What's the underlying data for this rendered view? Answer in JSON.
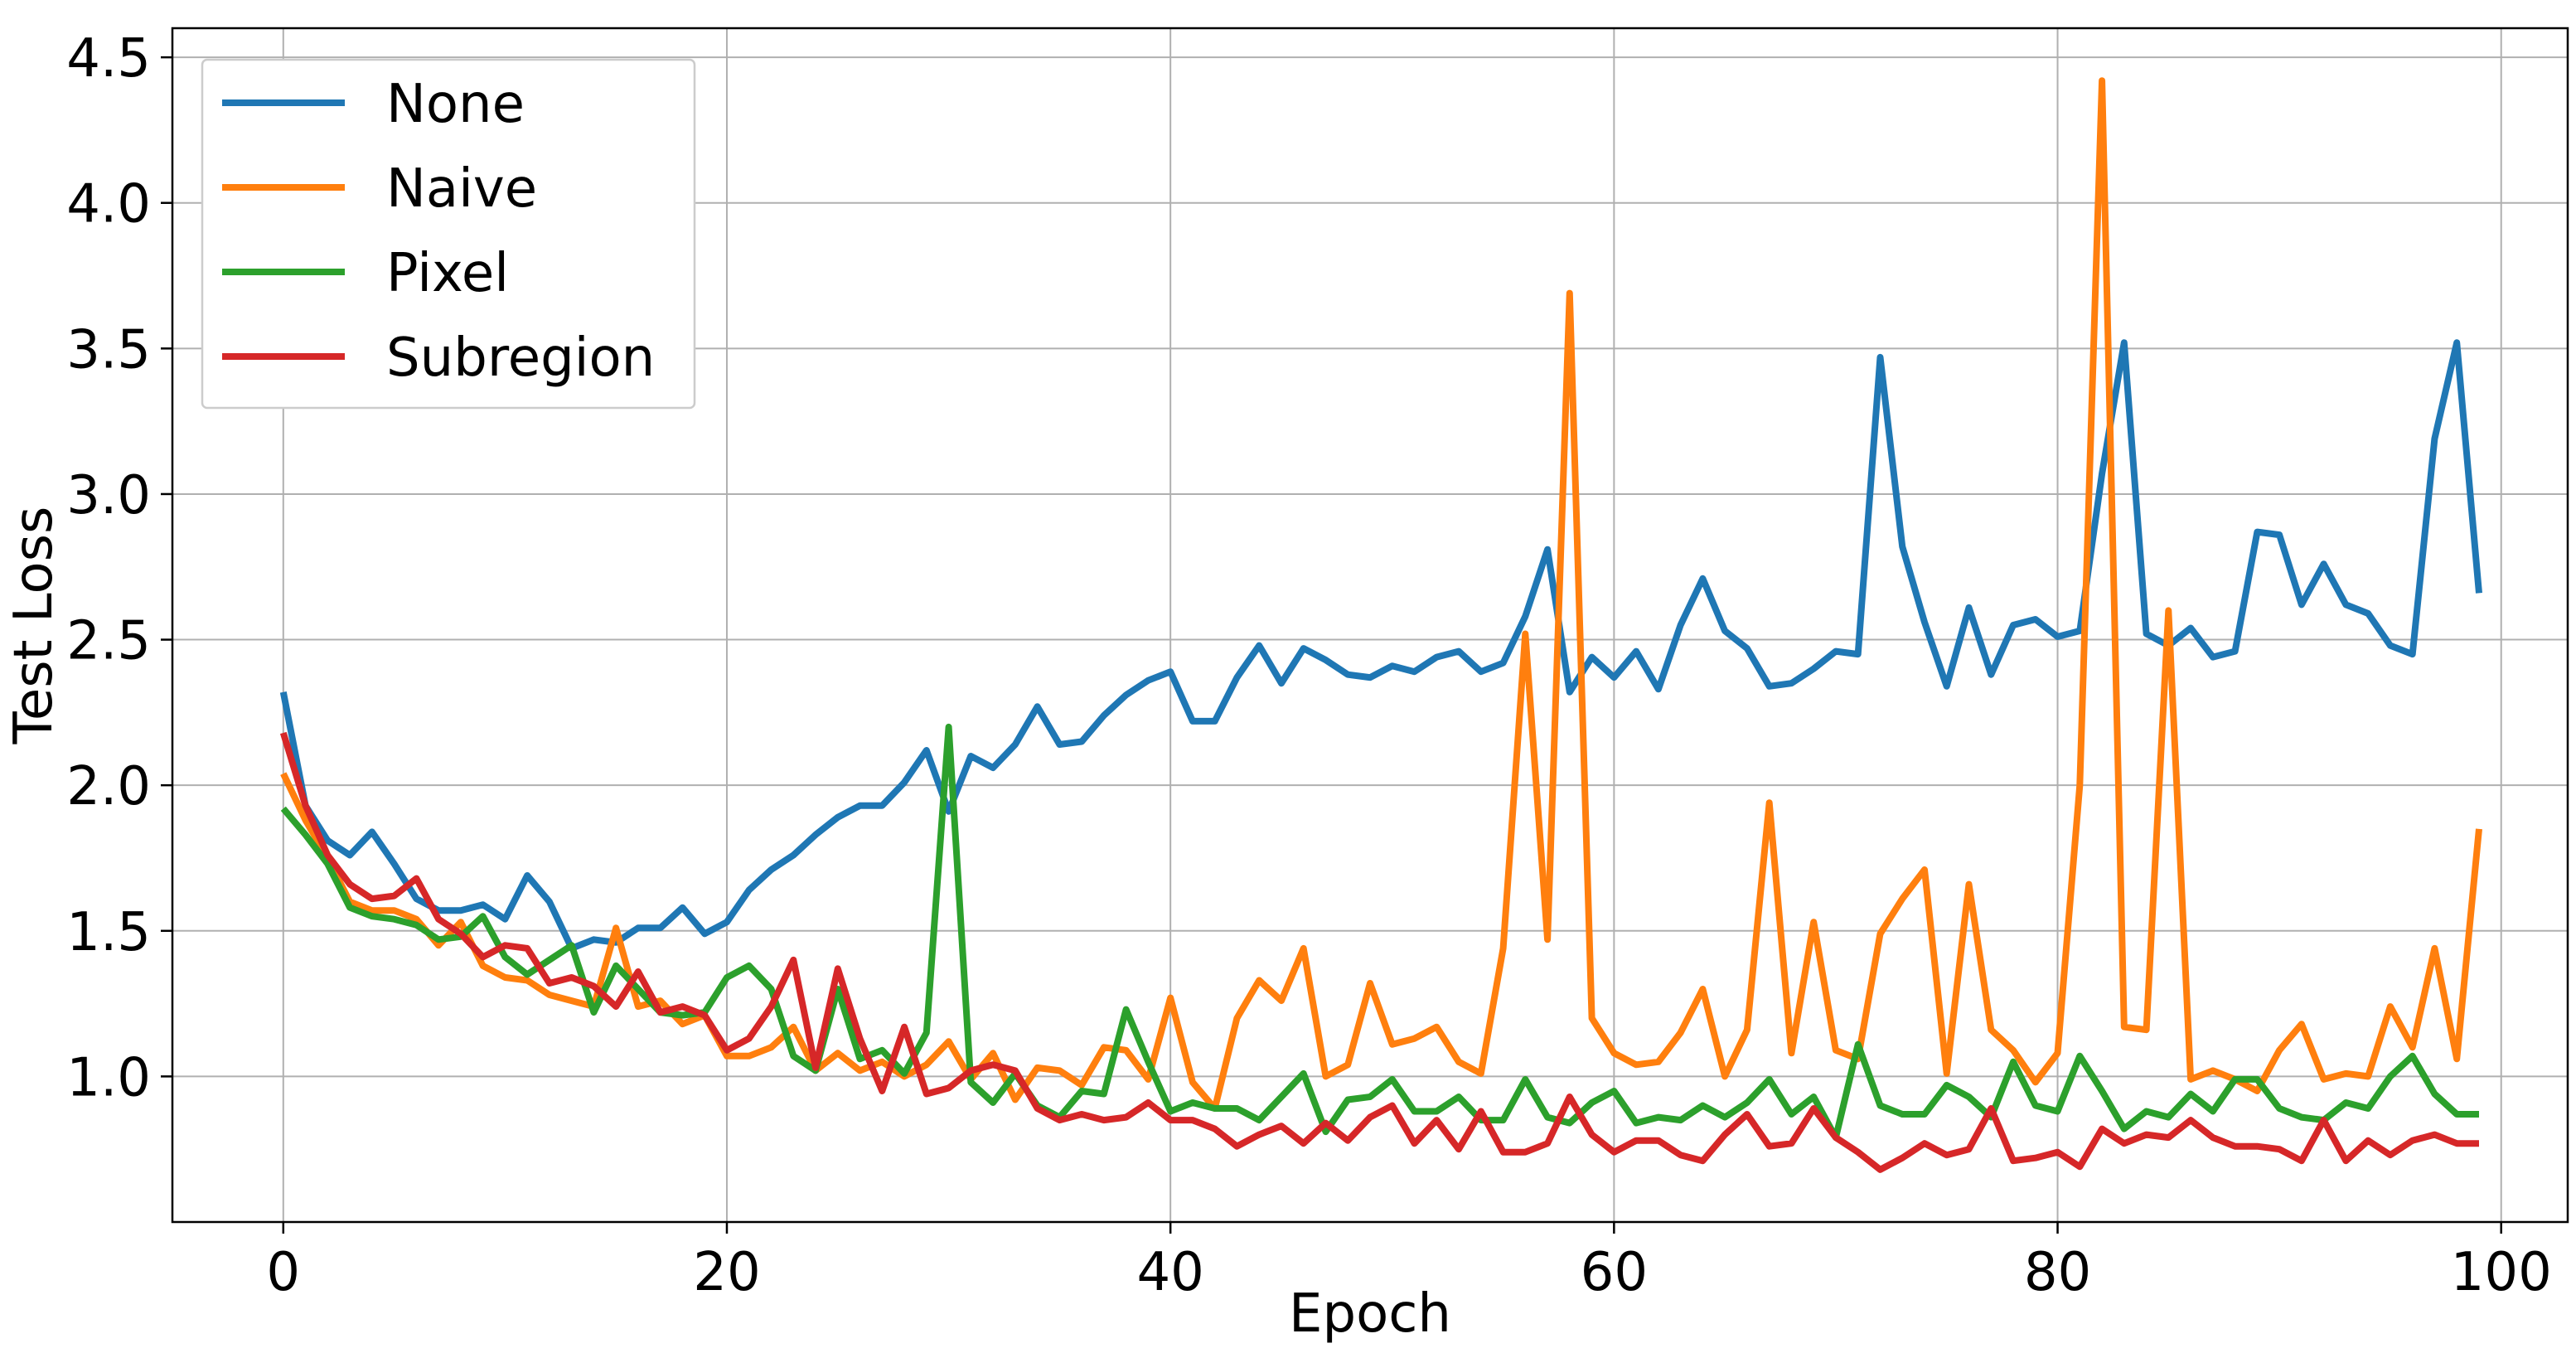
{
  "chart_data": {
    "type": "line",
    "title": "",
    "xlabel": "Epoch",
    "ylabel": "Test Loss",
    "xlim": [
      -5,
      103
    ],
    "ylim": [
      0.5,
      4.6
    ],
    "xticks": [
      0,
      20,
      40,
      60,
      80,
      100
    ],
    "yticks": [
      1.0,
      1.5,
      2.0,
      2.5,
      3.0,
      3.5,
      4.0,
      4.5
    ],
    "xtick_labels": [
      "0",
      "20",
      "40",
      "60",
      "80",
      "100"
    ],
    "ytick_labels": [
      "1.0",
      "1.5",
      "2.0",
      "2.5",
      "3.0",
      "3.5",
      "4.0",
      "4.5"
    ],
    "grid": true,
    "legend_position": "top-left",
    "series": [
      {
        "name": "None",
        "color": "#1f77b4",
        "values": [
          2.32,
          1.93,
          1.81,
          1.76,
          1.84,
          1.73,
          1.61,
          1.57,
          1.57,
          1.59,
          1.54,
          1.69,
          1.6,
          1.44,
          1.47,
          1.46,
          1.51,
          1.51,
          1.58,
          1.49,
          1.53,
          1.64,
          1.71,
          1.76,
          1.83,
          1.89,
          1.93,
          1.93,
          2.01,
          2.12,
          1.91,
          2.1,
          2.06,
          2.14,
          2.27,
          2.14,
          2.15,
          2.24,
          2.31,
          2.36,
          2.39,
          2.22,
          2.22,
          2.37,
          2.48,
          2.35,
          2.47,
          2.43,
          2.38,
          2.37,
          2.41,
          2.39,
          2.44,
          2.46,
          2.39,
          2.42,
          2.58,
          2.81,
          2.32,
          2.44,
          2.37,
          2.46,
          2.33,
          2.55,
          2.71,
          2.53,
          2.47,
          2.34,
          2.35,
          2.4,
          2.46,
          2.45,
          3.47,
          2.82,
          2.56,
          2.34,
          2.61,
          2.38,
          2.55,
          2.57,
          2.51,
          2.53,
          3.07,
          3.52,
          2.52,
          2.48,
          2.54,
          2.44,
          2.46,
          2.87,
          2.86,
          2.62,
          2.76,
          2.62,
          2.59,
          2.48,
          2.45,
          3.19,
          3.52,
          2.66
        ]
      },
      {
        "name": "Naive",
        "color": "#ff7f0e",
        "values": [
          2.04,
          1.88,
          1.75,
          1.6,
          1.57,
          1.57,
          1.54,
          1.45,
          1.53,
          1.38,
          1.34,
          1.33,
          1.28,
          1.26,
          1.24,
          1.51,
          1.24,
          1.26,
          1.18,
          1.21,
          1.07,
          1.07,
          1.1,
          1.17,
          1.02,
          1.08,
          1.02,
          1.05,
          1.0,
          1.04,
          1.12,
          0.99,
          1.08,
          0.92,
          1.03,
          1.02,
          0.97,
          1.1,
          1.09,
          0.99,
          1.27,
          0.98,
          0.89,
          1.2,
          1.33,
          1.26,
          1.44,
          1.0,
          1.04,
          1.32,
          1.11,
          1.13,
          1.17,
          1.05,
          1.01,
          1.44,
          2.52,
          1.47,
          3.69,
          1.2,
          1.08,
          1.04,
          1.05,
          1.15,
          1.3,
          1.0,
          1.16,
          1.94,
          1.08,
          1.53,
          1.09,
          1.06,
          1.49,
          1.61,
          1.71,
          1.01,
          1.66,
          1.16,
          1.09,
          0.98,
          1.08,
          2.0,
          4.42,
          1.17,
          1.16,
          2.6,
          0.99,
          1.02,
          0.99,
          0.95,
          1.09,
          1.18,
          0.99,
          1.01,
          1.0,
          1.24,
          1.1,
          1.44,
          1.06,
          1.85
        ]
      },
      {
        "name": "Pixel",
        "color": "#2ca02c",
        "values": [
          1.92,
          1.83,
          1.73,
          1.58,
          1.55,
          1.54,
          1.52,
          1.47,
          1.48,
          1.55,
          1.41,
          1.35,
          1.4,
          1.45,
          1.22,
          1.38,
          1.3,
          1.22,
          1.21,
          1.22,
          1.34,
          1.38,
          1.3,
          1.07,
          1.02,
          1.3,
          1.06,
          1.09,
          1.01,
          1.15,
          2.2,
          0.98,
          0.91,
          1.01,
          0.9,
          0.86,
          0.95,
          0.94,
          1.23,
          1.05,
          0.88,
          0.91,
          0.89,
          0.89,
          0.85,
          0.93,
          1.01,
          0.81,
          0.92,
          0.93,
          0.99,
          0.88,
          0.88,
          0.93,
          0.85,
          0.85,
          0.99,
          0.86,
          0.84,
          0.91,
          0.95,
          0.84,
          0.86,
          0.85,
          0.9,
          0.86,
          0.91,
          0.99,
          0.87,
          0.93,
          0.79,
          1.11,
          0.9,
          0.87,
          0.87,
          0.97,
          0.93,
          0.86,
          1.05,
          0.9,
          0.88,
          1.07,
          0.95,
          0.82,
          0.88,
          0.86,
          0.94,
          0.88,
          0.99,
          0.99,
          0.89,
          0.86,
          0.85,
          0.91,
          0.89,
          1.0,
          1.07,
          0.94,
          0.87,
          0.87
        ]
      },
      {
        "name": "Subregion",
        "color": "#d62728",
        "values": [
          2.18,
          1.93,
          1.76,
          1.66,
          1.61,
          1.62,
          1.68,
          1.54,
          1.49,
          1.41,
          1.45,
          1.44,
          1.32,
          1.34,
          1.31,
          1.24,
          1.36,
          1.22,
          1.24,
          1.21,
          1.09,
          1.13,
          1.24,
          1.4,
          1.03,
          1.37,
          1.13,
          0.95,
          1.17,
          0.94,
          0.96,
          1.02,
          1.04,
          1.02,
          0.89,
          0.85,
          0.87,
          0.85,
          0.86,
          0.91,
          0.85,
          0.85,
          0.82,
          0.76,
          0.8,
          0.83,
          0.77,
          0.84,
          0.78,
          0.86,
          0.9,
          0.77,
          0.85,
          0.75,
          0.88,
          0.74,
          0.74,
          0.77,
          0.93,
          0.8,
          0.74,
          0.78,
          0.78,
          0.73,
          0.71,
          0.8,
          0.87,
          0.76,
          0.77,
          0.89,
          0.79,
          0.74,
          0.68,
          0.72,
          0.77,
          0.73,
          0.75,
          0.89,
          0.71,
          0.72,
          0.74,
          0.69,
          0.82,
          0.77,
          0.8,
          0.79,
          0.85,
          0.79,
          0.76,
          0.76,
          0.75,
          0.71,
          0.85,
          0.71,
          0.78,
          0.73,
          0.78,
          0.8,
          0.77,
          0.77
        ]
      }
    ]
  }
}
